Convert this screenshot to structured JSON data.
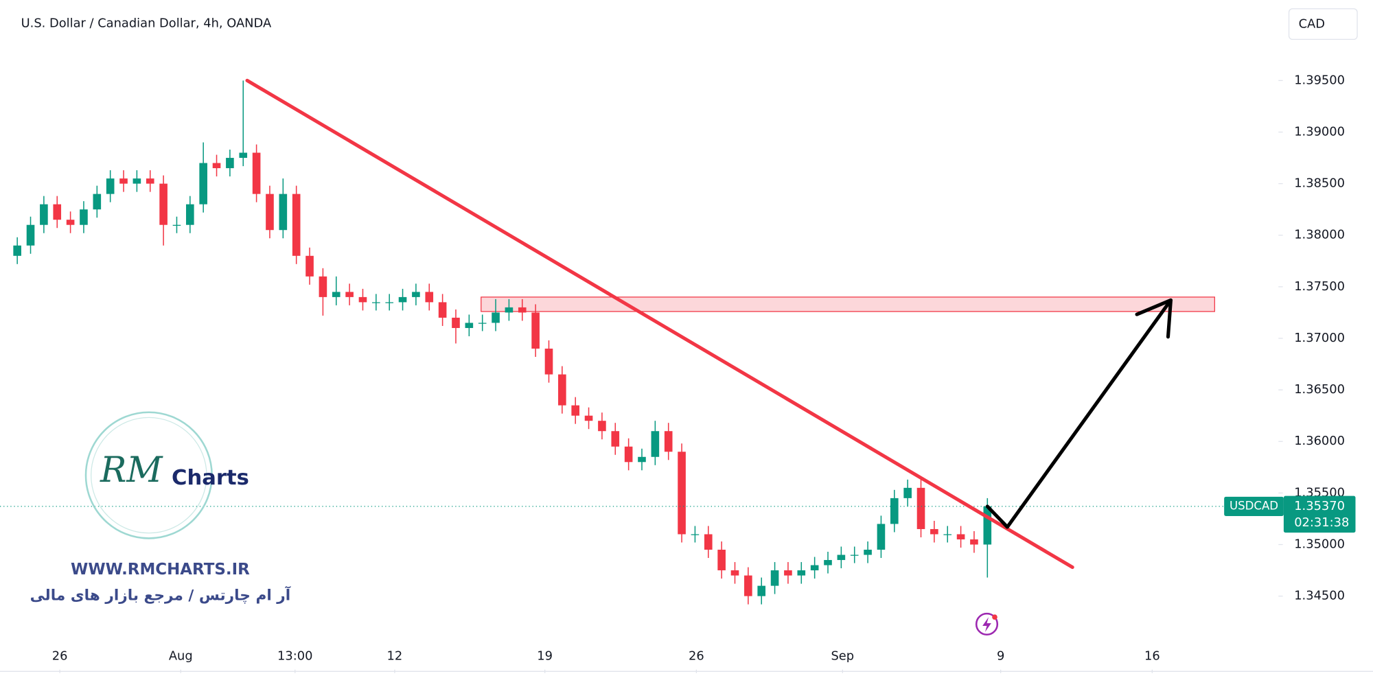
{
  "chart_data": {
    "type": "candlestick",
    "title": "U.S. Dollar / Canadian Dollar, 4h, OANDA",
    "currency": "CAD",
    "series": [
      {
        "name": "USDCAD",
        "up_color": "#089981",
        "down_color": "#f23645",
        "open": [
          1.378,
          1.379,
          1.381,
          1.383,
          1.3815,
          1.381,
          1.3825,
          1.384,
          1.3855,
          1.385,
          1.3855,
          1.385,
          1.381,
          1.381,
          1.383,
          1.387,
          1.3865,
          1.3875,
          1.388,
          1.384,
          1.3805,
          1.384,
          1.378,
          1.376,
          1.374,
          1.3745,
          1.374,
          1.3735,
          1.3735,
          1.3735,
          1.374,
          1.3745,
          1.3735,
          1.372,
          1.371,
          1.3715,
          1.3715,
          1.3725,
          1.373,
          1.3725,
          1.369,
          1.3665,
          1.3635,
          1.3625,
          1.362,
          1.361,
          1.3595,
          1.358,
          1.3585,
          1.361,
          1.359,
          1.351,
          1.351,
          1.3495,
          1.3475,
          1.347,
          1.345,
          1.346,
          1.3475,
          1.347,
          1.3475,
          1.348,
          1.3485,
          1.349,
          1.349,
          1.3495,
          1.352,
          1.3545,
          1.3555,
          1.3515,
          1.351,
          1.351,
          1.3505,
          1.35
        ],
        "high": [
          1.3798,
          1.3818,
          1.3838,
          1.3838,
          1.3823,
          1.3833,
          1.3848,
          1.3863,
          1.3863,
          1.3863,
          1.3863,
          1.3858,
          1.3818,
          1.3838,
          1.389,
          1.3878,
          1.3883,
          1.395,
          1.3888,
          1.3848,
          1.3855,
          1.3848,
          1.3788,
          1.3768,
          1.376,
          1.3753,
          1.3748,
          1.3743,
          1.3743,
          1.3748,
          1.3753,
          1.3753,
          1.3743,
          1.3728,
          1.3723,
          1.3723,
          1.3738,
          1.3738,
          1.3738,
          1.3733,
          1.3698,
          1.3673,
          1.3643,
          1.3633,
          1.3628,
          1.3618,
          1.3603,
          1.3593,
          1.362,
          1.3618,
          1.3598,
          1.3518,
          1.3518,
          1.3503,
          1.3483,
          1.3478,
          1.3468,
          1.3483,
          1.3483,
          1.3483,
          1.3488,
          1.3493,
          1.3498,
          1.3498,
          1.3503,
          1.3528,
          1.3553,
          1.3563,
          1.3563,
          1.3523,
          1.3518,
          1.3518,
          1.3513,
          1.3545
        ],
        "low": [
          1.3772,
          1.3782,
          1.3802,
          1.3807,
          1.3802,
          1.3802,
          1.3817,
          1.3832,
          1.3842,
          1.3842,
          1.3842,
          1.379,
          1.3802,
          1.3802,
          1.3822,
          1.3857,
          1.3857,
          1.3867,
          1.3832,
          1.3797,
          1.3797,
          1.3772,
          1.3752,
          1.3722,
          1.3732,
          1.3732,
          1.3727,
          1.3727,
          1.3727,
          1.3727,
          1.3732,
          1.3727,
          1.3712,
          1.3695,
          1.3702,
          1.3707,
          1.3707,
          1.3717,
          1.3717,
          1.3682,
          1.3657,
          1.3627,
          1.3617,
          1.3612,
          1.3602,
          1.3587,
          1.3572,
          1.3572,
          1.3577,
          1.3582,
          1.3502,
          1.3502,
          1.3487,
          1.3467,
          1.3462,
          1.3442,
          1.3442,
          1.3452,
          1.3462,
          1.3462,
          1.3467,
          1.3472,
          1.3477,
          1.3482,
          1.3482,
          1.3487,
          1.3512,
          1.3537,
          1.3507,
          1.3502,
          1.3502,
          1.3497,
          1.3492,
          1.3468
        ],
        "close": [
          1.379,
          1.381,
          1.383,
          1.3815,
          1.381,
          1.3825,
          1.384,
          1.3855,
          1.385,
          1.3855,
          1.385,
          1.381,
          1.381,
          1.383,
          1.387,
          1.3865,
          1.3875,
          1.388,
          1.384,
          1.3805,
          1.384,
          1.378,
          1.376,
          1.374,
          1.3745,
          1.374,
          1.3735,
          1.3735,
          1.3735,
          1.374,
          1.3745,
          1.3735,
          1.372,
          1.371,
          1.3715,
          1.3715,
          1.3725,
          1.373,
          1.3725,
          1.369,
          1.3665,
          1.3635,
          1.3625,
          1.362,
          1.361,
          1.3595,
          1.358,
          1.3585,
          1.361,
          1.359,
          1.351,
          1.351,
          1.3495,
          1.3475,
          1.347,
          1.345,
          1.346,
          1.3475,
          1.347,
          1.3475,
          1.348,
          1.3485,
          1.349,
          1.349,
          1.3495,
          1.352,
          1.3545,
          1.3555,
          1.3515,
          1.351,
          1.351,
          1.3505,
          1.35,
          1.3537
        ]
      }
    ],
    "xlim": [
      -1.3,
      94.9
    ],
    "xticks": [
      {
        "value": 3.2,
        "label": "26"
      },
      {
        "value": 12.3,
        "label": "Aug"
      },
      {
        "value": 20.9,
        "label": "13:00"
      },
      {
        "value": 28.4,
        "label": "12"
      },
      {
        "value": 39.7,
        "label": "19"
      },
      {
        "value": 51.1,
        "label": "26"
      },
      {
        "value": 62.1,
        "label": "Sep"
      },
      {
        "value": 74.0,
        "label": "9"
      },
      {
        "value": 85.4,
        "label": "16"
      }
    ],
    "ylim": [
      1.33787,
      1.40281
    ],
    "yticks": [
      {
        "value": 1.345,
        "label": "1.34500"
      },
      {
        "value": 1.35,
        "label": "1.35000"
      },
      {
        "value": 1.355,
        "label": "1.35500"
      },
      {
        "value": 1.36,
        "label": "1.36000"
      },
      {
        "value": 1.365,
        "label": "1.36500"
      },
      {
        "value": 1.37,
        "label": "1.37000"
      },
      {
        "value": 1.375,
        "label": "1.37500"
      },
      {
        "value": 1.38,
        "label": "1.38000"
      },
      {
        "value": 1.385,
        "label": "1.38500"
      },
      {
        "value": 1.39,
        "label": "1.39000"
      },
      {
        "value": 1.395,
        "label": "1.39500"
      }
    ],
    "price_line": {
      "name": "USDCAD",
      "value": 1.3537,
      "label": "1.35370",
      "countdown": "02:31:38",
      "color": "#089981"
    },
    "drawings": [
      {
        "color": "#f23645",
        "x": [
          17.3,
          79.4
        ],
        "y": [
          1.395,
          1.3478
        ]
      },
      {
        "color": "#000000",
        "x": [
          73,
          74.5,
          86.8
        ],
        "y": [
          1.3537,
          1.3517,
          1.3737
        ]
      }
    ],
    "zone": {
      "color": "#f23645",
      "x": [
        34.9,
        90.1
      ],
      "y": [
        1.3726,
        1.374
      ]
    }
  },
  "watermark": {
    "logo": "RM",
    "brand": "Charts",
    "url": "WWW.RMCHARTS.IR",
    "tagline": "آر ام چارتس / مرجع بازار های مالی"
  }
}
